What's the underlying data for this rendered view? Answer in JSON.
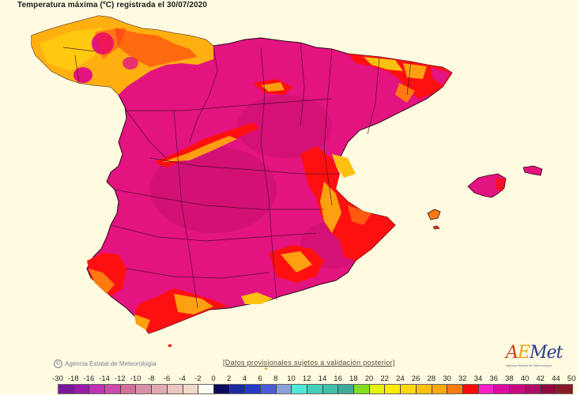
{
  "title": "Temperatura máxima (ºC) registrada el 30/07/2020",
  "credit": "Agencia Estatal de Meteorología",
  "disclaimer": "[Datos provisionales sujetos a validación posterior]",
  "logo": {
    "brand_a": "A",
    "brand_e": "E",
    "brand_rest": "Met",
    "subtitle": "Agencia Estatal de Meteorología"
  },
  "map": {
    "region": "Spain (Peninsula and Balearic Islands)",
    "variable": "Maximum temperature",
    "unit": "ºC",
    "date": "30/07/2020",
    "colors": {
      "background": "#fffbe0",
      "land_hot": "#e3137f",
      "land_very_hot": "#c81070",
      "band_32_34": "#ff1010",
      "band_30_32": "#ff7a10",
      "band_28_30": "#ffa010",
      "band_26_28": "#ffc010",
      "band_24_26": "#ffe010",
      "border": "#3a1a2a"
    }
  },
  "legend": {
    "labels": [
      "-30",
      "-18",
      "-16",
      "-14",
      "-12",
      "-10",
      "-8",
      "-6",
      "-4",
      "-2",
      "0",
      "2",
      "4",
      "6",
      "8",
      "10",
      "12",
      "14",
      "16",
      "18",
      "20",
      "22",
      "24",
      "26",
      "28",
      "30",
      "32",
      "34",
      "36",
      "38",
      "40",
      "42",
      "44",
      "50"
    ],
    "colors": [
      "#7a1a9a",
      "#9a1aaa",
      "#c030b8",
      "#cc4aaa",
      "#d07098",
      "#d890a8",
      "#e0aab4",
      "#eac6c0",
      "#f2dac8",
      "#fffff4",
      "#0a0a5a",
      "#1a2aa0",
      "#2a3ac8",
      "#4a5ad8",
      "#8aa0d8",
      "#50e8d8",
      "#40d0b8",
      "#40c0a8",
      "#40a898",
      "#80e020",
      "#e8f010",
      "#ffea00",
      "#ffd810",
      "#ffc010",
      "#ffa810",
      "#ff7a10",
      "#ff0a0a",
      "#ff20c8",
      "#e00aa0",
      "#c80a80",
      "#b00a68",
      "#900a40",
      "#8a1a28"
    ]
  }
}
